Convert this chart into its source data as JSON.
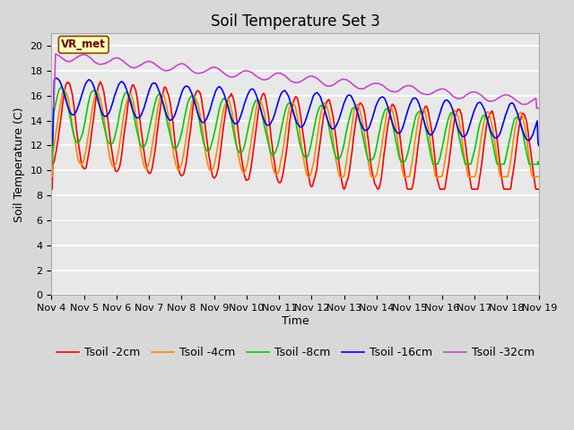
{
  "title": "Soil Temperature Set 3",
  "xlabel": "Time",
  "ylabel": "Soil Temperature (C)",
  "ylim": [
    0,
    21
  ],
  "yticks": [
    0,
    2,
    4,
    6,
    8,
    10,
    12,
    14,
    16,
    18,
    20
  ],
  "xtick_labels": [
    "Nov 4",
    "Nov 5",
    "Nov 6",
    "Nov 7",
    "Nov 8",
    "Nov 9",
    "Nov 10",
    "Nov 11",
    "Nov 12",
    "Nov 13",
    "Nov 14",
    "Nov 15",
    "Nov 16",
    "Nov 17",
    "Nov 18",
    "Nov 19"
  ],
  "series": [
    {
      "label": "Tsoil -2cm",
      "color": "#ff0000",
      "lw": 1.2
    },
    {
      "label": "Tsoil -4cm",
      "color": "#ff8800",
      "lw": 1.2
    },
    {
      "label": "Tsoil -8cm",
      "color": "#00cc00",
      "lw": 1.2
    },
    {
      "label": "Tsoil -16cm",
      "color": "#0000ff",
      "lw": 1.2
    },
    {
      "label": "Tsoil -32cm",
      "color": "#cc44cc",
      "lw": 1.2
    }
  ],
  "annotation_text": "VR_met",
  "fig_bg_color": "#d8d8d8",
  "plot_bg_color": "#e8e8e8",
  "grid_color": "white",
  "title_fontsize": 12,
  "axis_label_fontsize": 9,
  "tick_fontsize": 8,
  "legend_fontsize": 9
}
